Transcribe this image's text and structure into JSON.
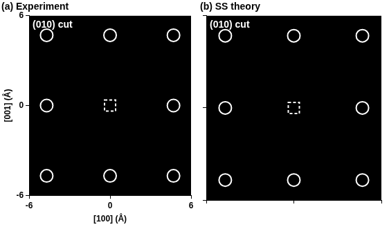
{
  "chart_data": [
    {
      "type": "scatter",
      "title": "(a) Experiment",
      "annotation": "(010) cut",
      "xlabel": "[100] (Å)",
      "ylabel": "[001] (Å)",
      "xlim": [
        -6,
        6
      ],
      "ylim": [
        -6,
        6
      ],
      "xticks": [
        -6,
        0,
        6
      ],
      "yticks": [
        -6,
        0,
        6
      ],
      "series": [
        {
          "x": [
            -4.7,
            0,
            4.7,
            -4.7,
            4.7,
            -4.7,
            0,
            4.7
          ],
          "values": [
            4.7,
            4.7,
            4.7,
            0,
            0,
            -4.7,
            -4.7,
            -4.7
          ],
          "color": "#ffffff",
          "marker": "circle"
        },
        {
          "x": [
            0
          ],
          "values": [
            0
          ],
          "color": "#ffffff",
          "marker": "square",
          "line_style": "dashed"
        }
      ]
    },
    {
      "type": "scatter",
      "title": "(b) SS theory",
      "annotation": "(010) cut",
      "xlim": [
        -6,
        6
      ],
      "ylim": [
        -6,
        6
      ],
      "xticks": [
        -6,
        0,
        6
      ],
      "yticks": [
        -6,
        0,
        6
      ],
      "tick_labels": false,
      "series": [
        {
          "x": [
            -4.7,
            0,
            4.7,
            -4.7,
            4.7,
            -4.7,
            0,
            4.7
          ],
          "values": [
            4.7,
            4.7,
            4.7,
            0,
            0,
            -4.7,
            -4.7,
            -4.7
          ],
          "color": "#ffffff",
          "marker": "circle"
        },
        {
          "x": [
            0
          ],
          "values": [
            0
          ],
          "color": "#ffffff",
          "marker": "square",
          "line_style": "dashed"
        }
      ]
    }
  ]
}
